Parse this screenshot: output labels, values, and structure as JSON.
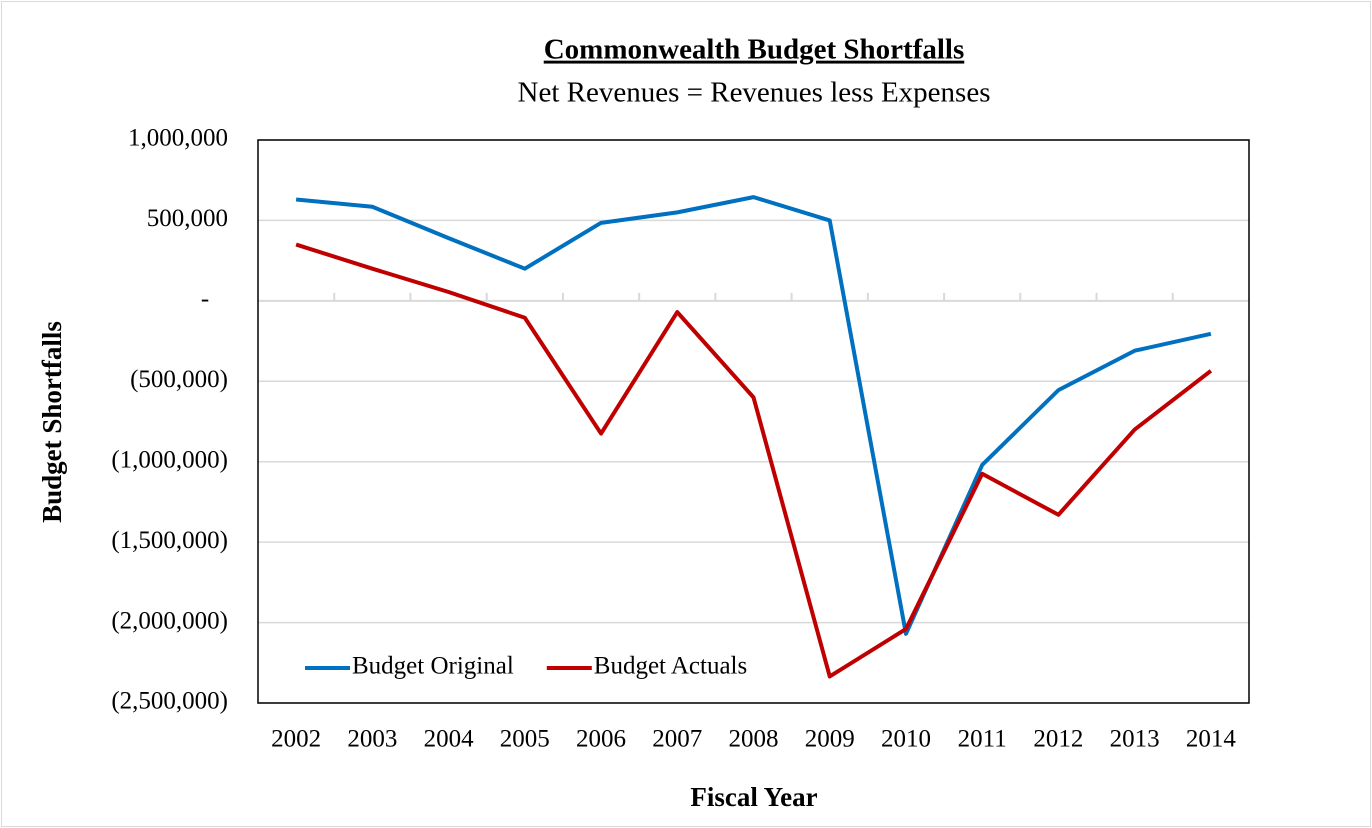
{
  "chart_data": {
    "type": "line",
    "title": "Commonwealth Budget Shortfalls",
    "subtitle": "Net Revenues = Revenues less Expenses",
    "y_label": "Budget Shortfalls",
    "x_label": "Fiscal Year",
    "categories": [
      "2002",
      "2003",
      "2004",
      "2005",
      "2006",
      "2007",
      "2008",
      "2009",
      "2010",
      "2011",
      "2012",
      "2013",
      "2014"
    ],
    "series": [
      {
        "name": "Budget Original",
        "color": "#0070c0",
        "values": [
          630000,
          585000,
          390000,
          200000,
          485000,
          550000,
          645000,
          500000,
          -2070000,
          -1020000,
          -555000,
          -310000,
          -205000
        ]
      },
      {
        "name": "Budget Actuals",
        "color": "#c00000",
        "values": [
          350000,
          200000,
          55000,
          -105000,
          -825000,
          -70000,
          -600000,
          -2335000,
          -2040000,
          -1075000,
          -1330000,
          -800000,
          -435000
        ]
      }
    ],
    "ylim": [
      -2500000,
      1000000
    ],
    "yticks": [
      {
        "value": 1000000,
        "label": "1,000,000"
      },
      {
        "value": 500000,
        "label": "500,000"
      },
      {
        "value": 0,
        "label": "-"
      },
      {
        "value": -500000,
        "label": "(500,000)"
      },
      {
        "value": -1000000,
        "label": "(1,000,000)"
      },
      {
        "value": -1500000,
        "label": "(1,500,000)"
      },
      {
        "value": -2000000,
        "label": "(2,000,000)"
      },
      {
        "value": -2500000,
        "label": "(2,500,000)"
      }
    ],
    "grid": true,
    "legend": "lower left"
  }
}
